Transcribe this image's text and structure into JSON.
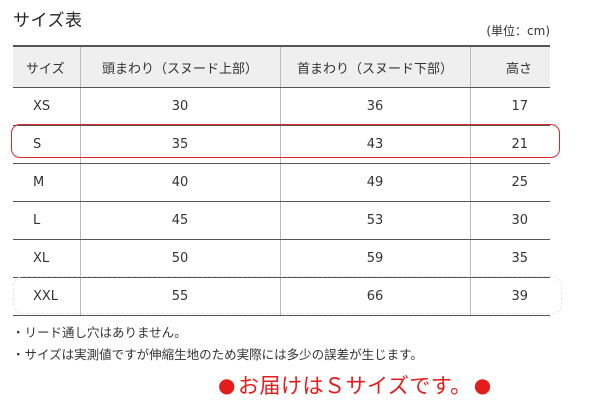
{
  "title": "サイズ表",
  "unit_note": "(単位：cm)",
  "table": {
    "headers": [
      "サイズ",
      "頭まわり（スヌード上部）",
      "首まわり（スヌード下部）",
      "高さ"
    ],
    "rows": [
      [
        "XS",
        "30",
        "36",
        "17"
      ],
      [
        "S",
        "35",
        "43",
        "21"
      ],
      [
        "M",
        "40",
        "49",
        "25"
      ],
      [
        "L",
        "45",
        "53",
        "30"
      ],
      [
        "XL",
        "50",
        "59",
        "35"
      ],
      [
        "XXL",
        "55",
        "66",
        "39"
      ]
    ],
    "highlighted_size": "S"
  },
  "notes": [
    "・リード通し穴はありません。",
    "・サイズは実測値ですが伸縮生地のため実際には多少の誤差が生じます。"
  ],
  "notice": {
    "bullet": "●",
    "text": "お届けはＳサイズです。",
    "color": "#e51c1c"
  },
  "colors": {
    "header_bg": "#efefef",
    "highlight": "#d9292e"
  }
}
